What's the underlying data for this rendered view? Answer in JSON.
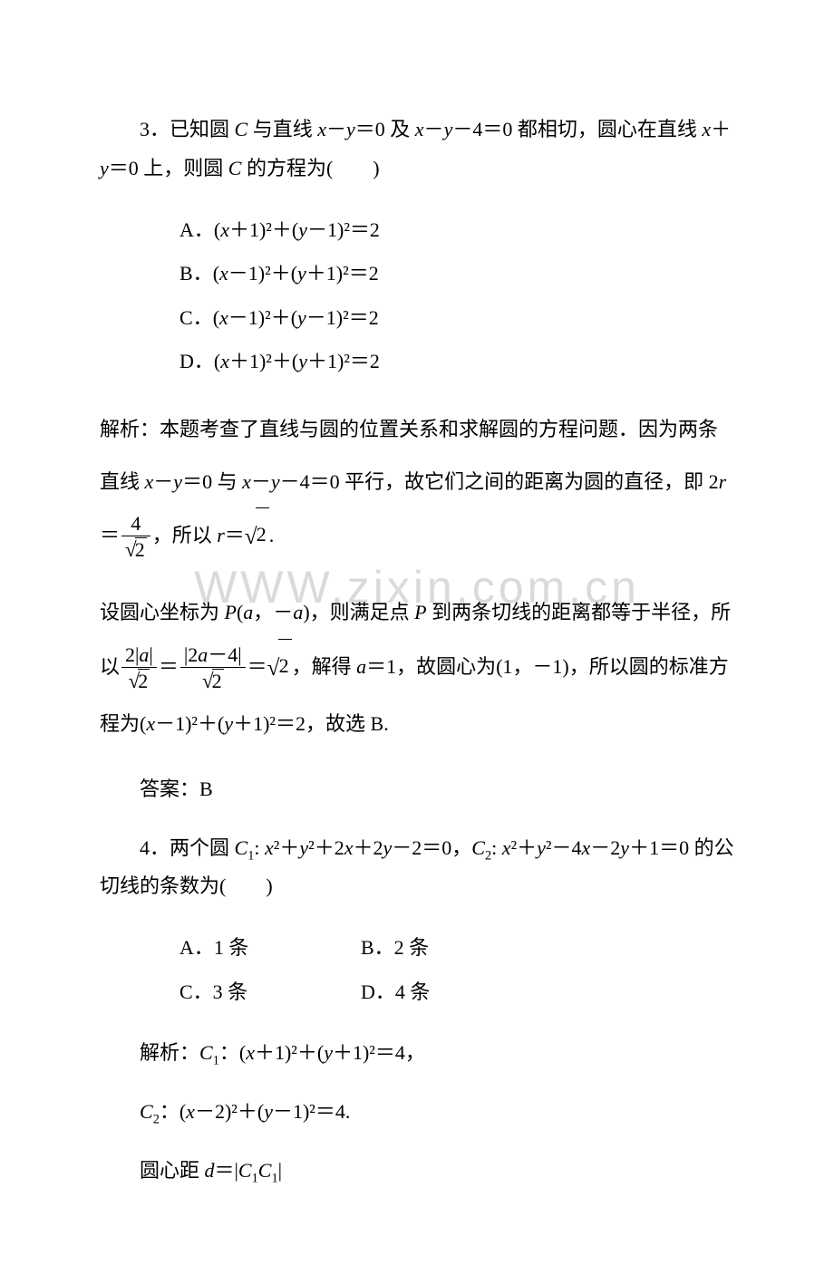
{
  "watermark": "WWW.zixin.com.cn",
  "q3": {
    "stem_prefix": "3．已知圆 ",
    "stem_a": " 与直线 ",
    "stem_b": "＝0 及 ",
    "stem_c": "－4＝0 都相切，圆心在直线 ",
    "stem_d": "＋",
    "stem_e": "＝0 上，则圆 ",
    "stem_f": " 的方程为(　　)",
    "options": {
      "A": "A．",
      "A_eq": "＋1)²＋(",
      "A_eq2": "－1)²＝2",
      "B": "B．",
      "B_eq": "－1)²＋(",
      "B_eq2": "＋1)²＝2",
      "C": "C．",
      "C_eq": "－1)²＋(",
      "C_eq2": "－1)²＝2",
      "D": "D．",
      "D_eq": "＋1)²＋(",
      "D_eq2": "＋1)²＝2"
    },
    "sol1_a": "解析：本题考查了直线与圆的位置关系和求解圆的方程问题．因为两条直线 ",
    "sol1_b": "－",
    "sol1_c": "＝0 与 ",
    "sol1_d": "－",
    "sol1_e": "－4＝0 平行，故它们之间的距离为圆的直径，即 2",
    "sol1_f": "＝",
    "sol1_g": "，所以 ",
    "sol1_h": "＝",
    "sol1_dot": ".",
    "frac_4": "4",
    "sqrt2": "2",
    "sol2_a": "设圆心坐标为 ",
    "sol2_b": "(",
    "sol2_c": "，－",
    "sol2_d": ")，则满足点 ",
    "sol2_e": " 到两条切线的距离都等于半径，所以",
    "sol2_num1_a": "2|",
    "sol2_num1_b": "|",
    "sol2_eq1": "＝",
    "sol2_num2_a": "|2",
    "sol2_num2_b": "－4|",
    "sol2_eq2": "＝",
    "sol2_f": "，解得 ",
    "sol2_g": "＝1，故圆心为(1，－1)，所以圆的标准方程为(",
    "sol2_h": "－1)²＋(",
    "sol2_i": "＋1)²＝2，故选 B.",
    "ans": "答案：B"
  },
  "q4": {
    "stem_a": "4．两个圆 ",
    "stem_b": ": ",
    "stem_c": "²＋",
    "stem_d": "²＋2",
    "stem_e": "＋2",
    "stem_f": "－2＝0，",
    "stem_g": ": ",
    "stem_h": "²＋",
    "stem_i": "²－4",
    "stem_j": "－2",
    "stem_k": "＋1＝0 的公切线的条数为(　　)",
    "options": {
      "A": "A．1 条",
      "B": "B．2 条",
      "C": "C．3 条",
      "D": "D．4 条"
    },
    "sol1_a": "解析：",
    "sol1_b": "：(",
    "sol1_c": "＋1)²＋(",
    "sol1_d": "＋1)²＝4，",
    "sol2_a": "：(",
    "sol2_b": "－2)²＋(",
    "sol2_c": "－1)²＝4.",
    "sol3_a": "圆心距 ",
    "sol3_b": "＝|",
    "sol3_c": "|"
  },
  "sym": {
    "C": "C",
    "x": "x",
    "y": "y",
    "r": "r",
    "P": "P",
    "a": "a",
    "d": "d",
    "C1": "C",
    "one": "1",
    "two": "2"
  }
}
